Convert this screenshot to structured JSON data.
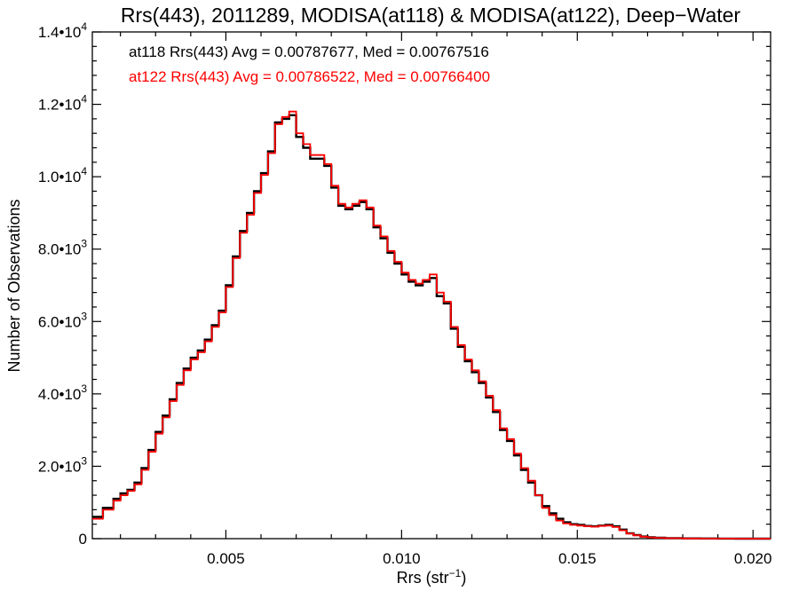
{
  "chart_data": {
    "type": "line",
    "title": "Rrs(443), 2011289, MODISA(at118) & MODISA(at122), Deep−Water",
    "xlabel": "Rrs (str",
    "xlabel_sup": "−1",
    "xlabel_end": ")",
    "ylabel": "Number of Observations",
    "xlim": [
      0.0012,
      0.0205
    ],
    "ylim": [
      0,
      14000
    ],
    "x_ticks": [
      {
        "value": 0.005,
        "label": "0.005"
      },
      {
        "value": 0.01,
        "label": "0.010"
      },
      {
        "value": 0.015,
        "label": "0.015"
      },
      {
        "value": 0.02,
        "label": "0.020"
      }
    ],
    "y_ticks": [
      {
        "value": 0,
        "label": "0",
        "sup": ""
      },
      {
        "value": 2000,
        "label": "2.0•10",
        "sup": "3"
      },
      {
        "value": 4000,
        "label": "4.0•10",
        "sup": "3"
      },
      {
        "value": 6000,
        "label": "6.0•10",
        "sup": "3"
      },
      {
        "value": 8000,
        "label": "8.0•10",
        "sup": "3"
      },
      {
        "value": 10000,
        "label": "1.0•10",
        "sup": "4"
      },
      {
        "value": 12000,
        "label": "1.2•10",
        "sup": "4"
      },
      {
        "value": 14000,
        "label": "1.4•10",
        "sup": "4"
      }
    ],
    "annotations": [
      {
        "text": "at118 Rrs(443) Avg = 0.00787677, Med = 0.00767516",
        "color": "#000000"
      },
      {
        "text": "at122 Rrs(443) Avg = 0.00786522, Med = 0.00766400",
        "color": "#ff0000"
      }
    ],
    "series": [
      {
        "color": "#000000",
        "points": [
          [
            0.0012,
            600
          ],
          [
            0.0015,
            850
          ],
          [
            0.0018,
            1100
          ],
          [
            0.002,
            1250
          ],
          [
            0.0022,
            1350
          ],
          [
            0.0024,
            1550
          ],
          [
            0.0026,
            1950
          ],
          [
            0.0028,
            2450
          ],
          [
            0.003,
            2950
          ],
          [
            0.0032,
            3400
          ],
          [
            0.0034,
            3850
          ],
          [
            0.0036,
            4300
          ],
          [
            0.0038,
            4700
          ],
          [
            0.004,
            5000
          ],
          [
            0.0042,
            5200
          ],
          [
            0.0044,
            5500
          ],
          [
            0.0046,
            5900
          ],
          [
            0.0048,
            6300
          ],
          [
            0.005,
            7000
          ],
          [
            0.0052,
            7800
          ],
          [
            0.0054,
            8500
          ],
          [
            0.0056,
            9000
          ],
          [
            0.0058,
            9600
          ],
          [
            0.006,
            10100
          ],
          [
            0.0062,
            10700
          ],
          [
            0.0064,
            11500
          ],
          [
            0.0066,
            11600
          ],
          [
            0.0068,
            11700
          ],
          [
            0.007,
            11100
          ],
          [
            0.0072,
            10800
          ],
          [
            0.0074,
            10500
          ],
          [
            0.0076,
            10500
          ],
          [
            0.0078,
            10300
          ],
          [
            0.008,
            9700
          ],
          [
            0.0082,
            9200
          ],
          [
            0.0084,
            9100
          ],
          [
            0.0086,
            9200
          ],
          [
            0.0088,
            9300
          ],
          [
            0.009,
            9100
          ],
          [
            0.0092,
            8600
          ],
          [
            0.0094,
            8300
          ],
          [
            0.0096,
            7900
          ],
          [
            0.0098,
            7600
          ],
          [
            0.01,
            7300
          ],
          [
            0.0102,
            7100
          ],
          [
            0.0104,
            7000
          ],
          [
            0.0106,
            7100
          ],
          [
            0.0108,
            7200
          ],
          [
            0.011,
            6700
          ],
          [
            0.0112,
            6500
          ],
          [
            0.0114,
            5800
          ],
          [
            0.0116,
            5300
          ],
          [
            0.0118,
            4900
          ],
          [
            0.012,
            4600
          ],
          [
            0.0122,
            4300
          ],
          [
            0.0124,
            3900
          ],
          [
            0.0126,
            3500
          ],
          [
            0.0128,
            3000
          ],
          [
            0.013,
            2700
          ],
          [
            0.0132,
            2300
          ],
          [
            0.0134,
            1900
          ],
          [
            0.0136,
            1550
          ],
          [
            0.0138,
            1200
          ],
          [
            0.014,
            900
          ],
          [
            0.0142,
            700
          ],
          [
            0.0144,
            550
          ],
          [
            0.0146,
            450
          ],
          [
            0.0148,
            400
          ],
          [
            0.015,
            380
          ],
          [
            0.0152,
            350
          ],
          [
            0.0154,
            340
          ],
          [
            0.0156,
            360
          ],
          [
            0.0158,
            380
          ],
          [
            0.016,
            340
          ],
          [
            0.0162,
            250
          ],
          [
            0.0164,
            150
          ],
          [
            0.0166,
            100
          ],
          [
            0.0168,
            60
          ],
          [
            0.017,
            40
          ],
          [
            0.0172,
            25
          ],
          [
            0.0175,
            15
          ],
          [
            0.018,
            8
          ],
          [
            0.0185,
            4
          ],
          [
            0.019,
            2
          ],
          [
            0.0195,
            1
          ],
          [
            0.02,
            1
          ],
          [
            0.0205,
            0
          ]
        ]
      },
      {
        "color": "#ff0000",
        "points": [
          [
            0.0012,
            550
          ],
          [
            0.0015,
            800
          ],
          [
            0.0018,
            1050
          ],
          [
            0.002,
            1200
          ],
          [
            0.0022,
            1320
          ],
          [
            0.0024,
            1500
          ],
          [
            0.0026,
            1900
          ],
          [
            0.0028,
            2400
          ],
          [
            0.003,
            2900
          ],
          [
            0.0032,
            3350
          ],
          [
            0.0034,
            3800
          ],
          [
            0.0036,
            4250
          ],
          [
            0.0038,
            4650
          ],
          [
            0.004,
            4950
          ],
          [
            0.0042,
            5150
          ],
          [
            0.0044,
            5450
          ],
          [
            0.0046,
            5850
          ],
          [
            0.0048,
            6250
          ],
          [
            0.005,
            6950
          ],
          [
            0.0052,
            7750
          ],
          [
            0.0054,
            8450
          ],
          [
            0.0056,
            8950
          ],
          [
            0.0058,
            9550
          ],
          [
            0.006,
            10050
          ],
          [
            0.0062,
            10650
          ],
          [
            0.0064,
            11450
          ],
          [
            0.0066,
            11650
          ],
          [
            0.0068,
            11800
          ],
          [
            0.007,
            11200
          ],
          [
            0.0072,
            10900
          ],
          [
            0.0074,
            10600
          ],
          [
            0.0076,
            10600
          ],
          [
            0.0078,
            10350
          ],
          [
            0.008,
            9750
          ],
          [
            0.0082,
            9250
          ],
          [
            0.0084,
            9150
          ],
          [
            0.0086,
            9250
          ],
          [
            0.0088,
            9350
          ],
          [
            0.009,
            9150
          ],
          [
            0.0092,
            8650
          ],
          [
            0.0094,
            8350
          ],
          [
            0.0096,
            7950
          ],
          [
            0.0098,
            7650
          ],
          [
            0.01,
            7350
          ],
          [
            0.0102,
            7150
          ],
          [
            0.0104,
            7050
          ],
          [
            0.0106,
            7150
          ],
          [
            0.0108,
            7300
          ],
          [
            0.011,
            6800
          ],
          [
            0.0112,
            6550
          ],
          [
            0.0114,
            5850
          ],
          [
            0.0116,
            5350
          ],
          [
            0.0118,
            4950
          ],
          [
            0.012,
            4650
          ],
          [
            0.0122,
            4350
          ],
          [
            0.0124,
            3950
          ],
          [
            0.0126,
            3550
          ],
          [
            0.0128,
            3050
          ],
          [
            0.013,
            2750
          ],
          [
            0.0132,
            2350
          ],
          [
            0.0134,
            1950
          ],
          [
            0.0136,
            1600
          ],
          [
            0.0138,
            1200
          ],
          [
            0.014,
            850
          ],
          [
            0.0142,
            650
          ],
          [
            0.0144,
            500
          ],
          [
            0.0146,
            420
          ],
          [
            0.0148,
            380
          ],
          [
            0.015,
            360
          ],
          [
            0.0152,
            340
          ],
          [
            0.0154,
            330
          ],
          [
            0.0156,
            350
          ],
          [
            0.0158,
            360
          ],
          [
            0.016,
            320
          ],
          [
            0.0162,
            230
          ],
          [
            0.0164,
            140
          ],
          [
            0.0166,
            90
          ],
          [
            0.0168,
            55
          ],
          [
            0.017,
            35
          ],
          [
            0.0172,
            22
          ],
          [
            0.0175,
            12
          ],
          [
            0.018,
            6
          ],
          [
            0.0185,
            3
          ],
          [
            0.019,
            2
          ],
          [
            0.0195,
            1
          ],
          [
            0.02,
            1
          ],
          [
            0.0205,
            0
          ]
        ]
      }
    ],
    "grid": false,
    "legend": "none"
  }
}
